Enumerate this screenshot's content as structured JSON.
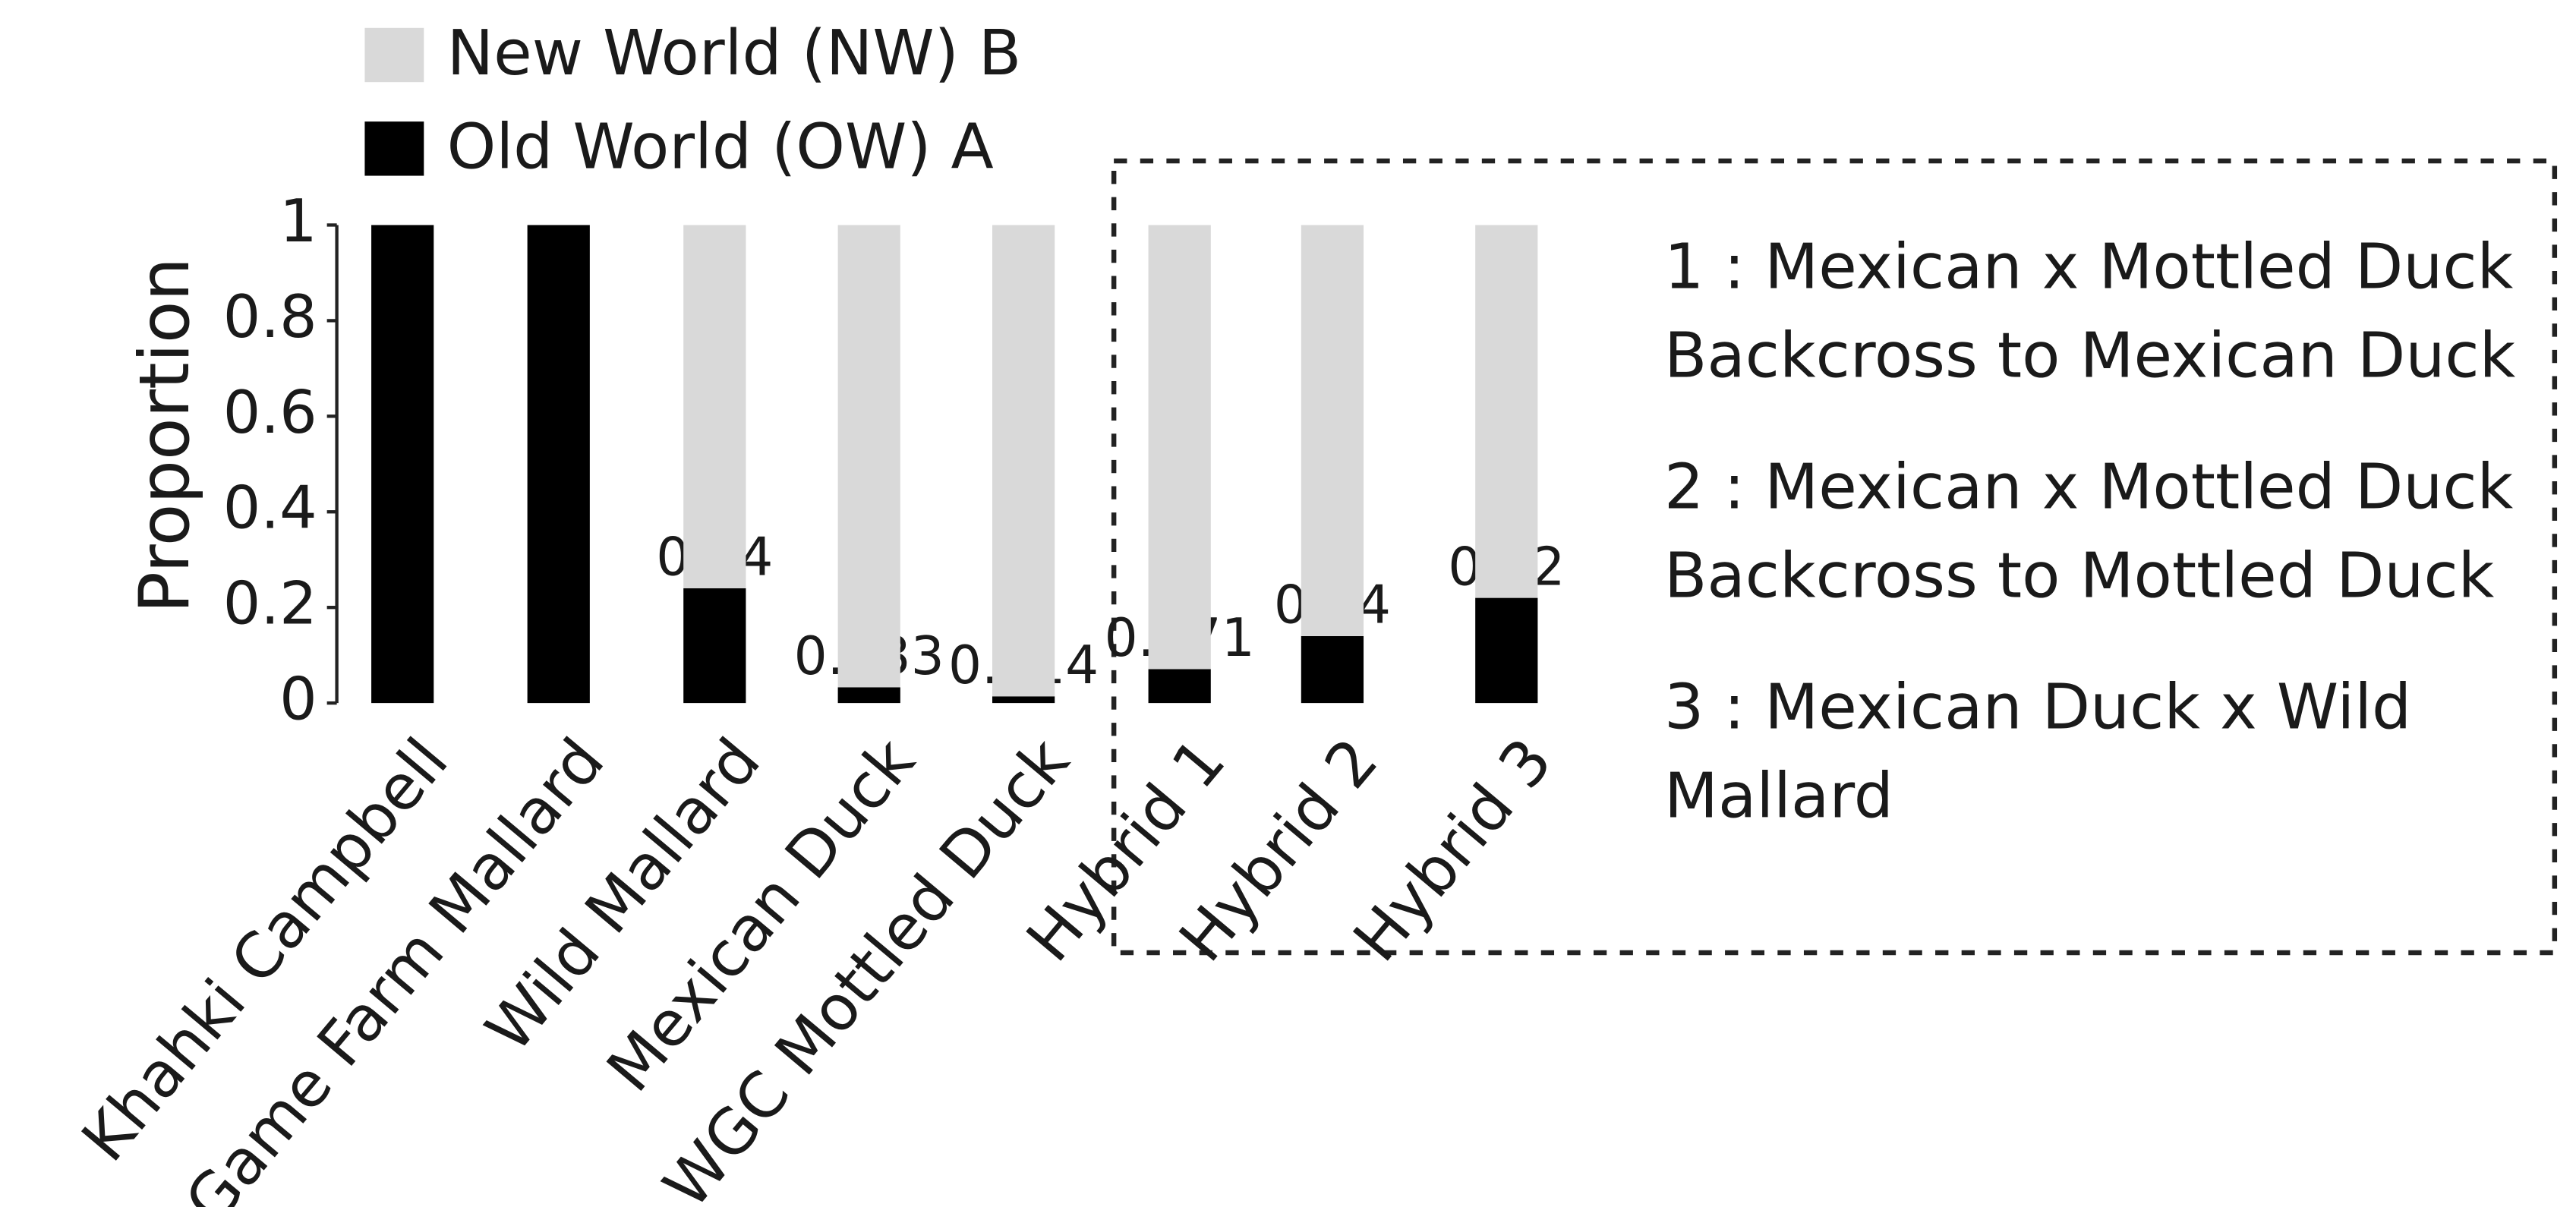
{
  "chart_data": {
    "type": "stacked_bar",
    "y_label": "Proportion",
    "categories": [
      "Khahki Campbell",
      "Game Farm Mallard",
      "Wild Mallard",
      "Mexican Duck",
      "WGC Mottled Duck",
      "Hybrid 1",
      "Hybrid 2",
      "Hybrid 3"
    ],
    "series": [
      {
        "name": "Old World (OW) A",
        "color": "#000000",
        "values": [
          1,
          1,
          0.24,
          0.033,
          0.014,
          0.071,
          0.14,
          0.22
        ],
        "value_labels": [
          null,
          null,
          "0.24",
          "0.033",
          "0.014",
          "0.071",
          "0.14",
          "0.22"
        ]
      },
      {
        "name": "New World (NW) B",
        "color": "#d9d9d9",
        "values": [
          0,
          0,
          0.76,
          0.967,
          0.986,
          0.929,
          0.86,
          0.78
        ]
      }
    ],
    "ylim": [
      0,
      1
    ],
    "yticks": [
      0,
      0.2,
      0.4,
      0.6,
      0.8,
      1
    ],
    "notes": [
      [
        "1 : Mexican x Mottled Duck",
        "Backcross to Mexican Duck"
      ],
      [
        "2 : Mexican x Mottled Duck",
        "Backcross to Mottled Duck"
      ],
      [
        "3 : Mexican Duck x Wild",
        "Mallard"
      ]
    ]
  }
}
